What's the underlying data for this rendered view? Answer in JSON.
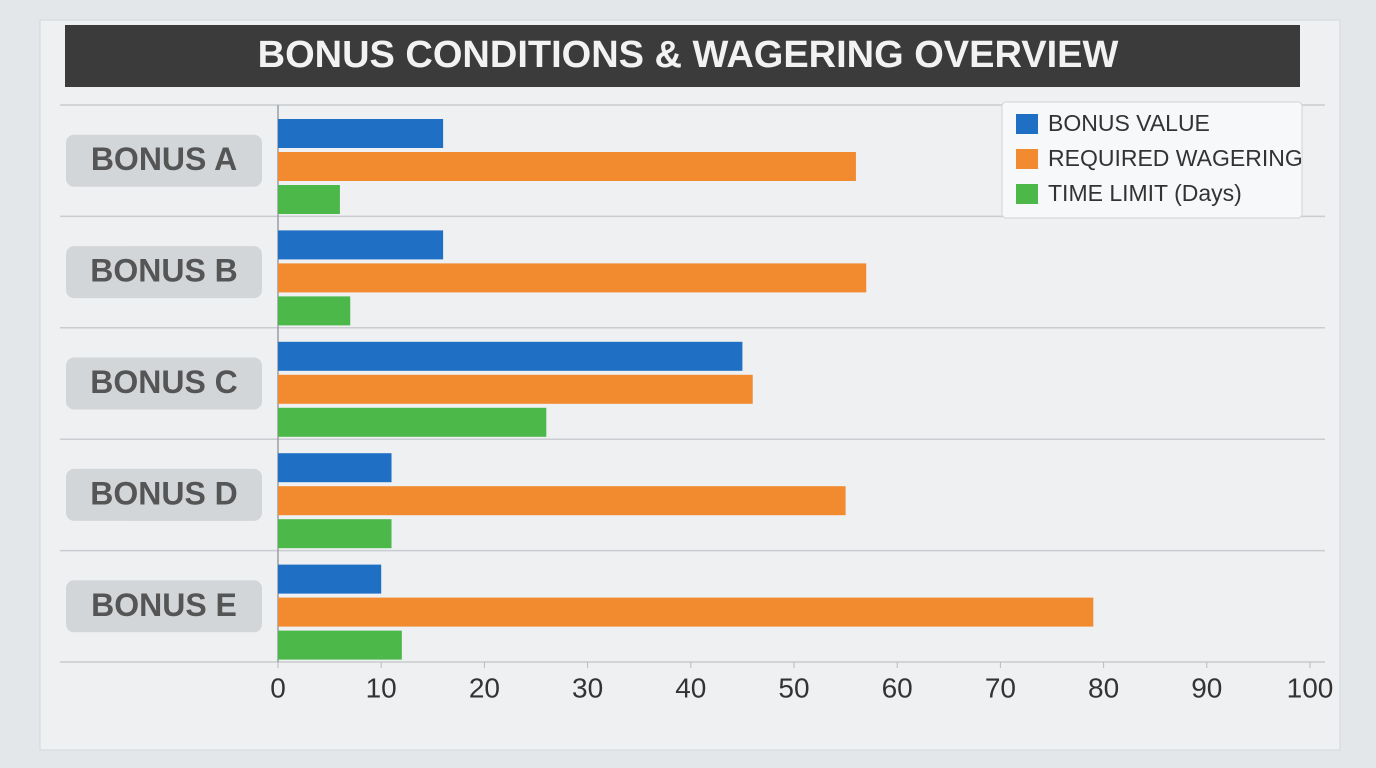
{
  "chart_data": {
    "type": "hbar",
    "title": "BONUS CONDITIONS & WAGERING OVERVIEW",
    "categories": [
      "BONUS A",
      "BONUS B",
      "BONUS C",
      "BONUS D",
      "BONUS E"
    ],
    "series": [
      {
        "name": "BONUS VALUE",
        "color": "#1f6fc5",
        "values": [
          16,
          16,
          45,
          11,
          10
        ]
      },
      {
        "name": "REQUIRED WAGERING",
        "color": "#f28a30",
        "values": [
          56,
          57,
          46,
          55,
          79
        ]
      },
      {
        "name": "TIME LIMIT (Days)",
        "color": "#4cb84a",
        "values": [
          6,
          7,
          26,
          11,
          12
        ]
      }
    ],
    "xlim": [
      0,
      100
    ],
    "xticks": [
      0,
      10,
      20,
      30,
      40,
      50,
      60,
      70,
      80,
      90,
      100
    ],
    "grid": false,
    "legend": "top-right"
  }
}
